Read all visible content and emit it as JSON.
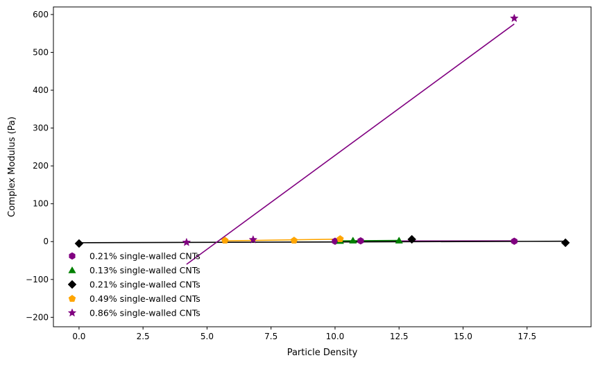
{
  "chart_data": {
    "type": "scatter",
    "title": "",
    "xlabel": "Particle Density",
    "ylabel": "Complex Modulus (Pa)",
    "xlim": [
      -1.0,
      20.0
    ],
    "ylim": [
      -225,
      620
    ],
    "xticks": [
      0.0,
      2.5,
      5.0,
      7.5,
      10.0,
      12.5,
      15.0,
      17.5
    ],
    "xtick_labels": [
      "0.0",
      "2.5",
      "5.0",
      "7.5",
      "10.0",
      "12.5",
      "15.0",
      "17.5"
    ],
    "yticks": [
      -200,
      -100,
      0,
      100,
      200,
      300,
      400,
      500,
      600
    ],
    "ytick_labels": [
      "−200",
      "−100",
      "0",
      "100",
      "200",
      "300",
      "400",
      "500",
      "600"
    ],
    "grid": false,
    "legend_position": "lower-left",
    "series": [
      {
        "name": "0.21% single-walled CNTs",
        "color": "#800080",
        "marker": "hexagon",
        "x": [
          10.0,
          11.0,
          17.0
        ],
        "y": [
          1,
          2,
          1
        ],
        "fit": [
          [
            10.0,
            1.5
          ],
          [
            17.0,
            2.0
          ]
        ]
      },
      {
        "name": "0.13% single-walled CNTs",
        "color": "#008000",
        "marker": "triangle",
        "x": [
          10.2,
          10.7,
          12.5
        ],
        "y": [
          2,
          3,
          3
        ],
        "fit": [
          [
            10.2,
            2.0
          ],
          [
            12.5,
            3.0
          ]
        ]
      },
      {
        "name": "0.21% single-walled CNTs",
        "color": "#000000",
        "marker": "diamond",
        "x": [
          0.0,
          13.0,
          19.0
        ],
        "y": [
          -5,
          6,
          -3
        ],
        "fit": [
          [
            0.0,
            -3.0
          ],
          [
            19.0,
            1.0
          ]
        ]
      },
      {
        "name": "0.49% single-walled CNTs",
        "color": "#FFA500",
        "marker": "pentagon",
        "x": [
          5.7,
          8.4,
          10.2
        ],
        "y": [
          3,
          3,
          7
        ],
        "fit": [
          [
            5.7,
            2.0
          ],
          [
            10.2,
            6.5
          ]
        ]
      },
      {
        "name": "0.86% single-walled CNTs",
        "color": "#800080",
        "marker": "star",
        "x": [
          4.2,
          6.8,
          17.0
        ],
        "y": [
          -2,
          5,
          590
        ],
        "fit": [
          [
            4.2,
            -60.0
          ],
          [
            17.0,
            575.0
          ]
        ]
      }
    ]
  }
}
